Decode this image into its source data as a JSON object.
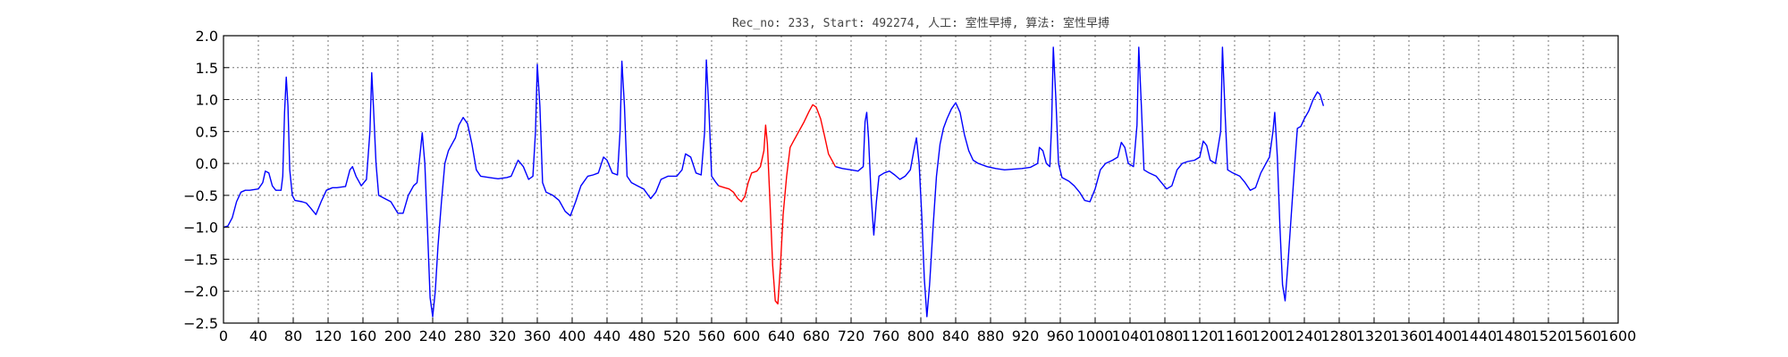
{
  "chart_data": {
    "type": "line",
    "title": "Rec_no: 233, Start: 492274, 人工: 室性早搏, 算法: 室性早搏",
    "xlabel": "",
    "ylabel": "",
    "xlim": [
      0,
      1600
    ],
    "ylim": [
      -2.5,
      2.0
    ],
    "grid": true,
    "x_ticks": [
      0,
      40,
      80,
      120,
      160,
      200,
      240,
      280,
      320,
      360,
      400,
      440,
      480,
      520,
      560,
      600,
      640,
      680,
      720,
      760,
      800,
      840,
      880,
      920,
      960,
      1000,
      1040,
      1080,
      1120,
      1160,
      1200,
      1240,
      1280,
      1320,
      1360,
      1400,
      1440,
      1480,
      1520,
      1560,
      1600
    ],
    "y_ticks": [
      2.0,
      1.5,
      1.0,
      0.5,
      0.0,
      -0.5,
      -1.0,
      -1.5,
      -2.0,
      -2.5
    ],
    "y_tick_labels": [
      "2.0",
      "1.5",
      "1.0",
      "0.5",
      "0.0",
      "−0.5",
      "−1.0",
      "−1.5",
      "−2.0",
      "−2.5"
    ],
    "series": [
      {
        "color": "#0000ff",
        "segment": "before",
        "points": [
          [
            0,
            -1.0
          ],
          [
            5,
            -0.98
          ],
          [
            10,
            -0.85
          ],
          [
            15,
            -0.6
          ],
          [
            20,
            -0.45
          ],
          [
            25,
            -0.42
          ],
          [
            30,
            -0.42
          ],
          [
            40,
            -0.4
          ],
          [
            45,
            -0.3
          ],
          [
            48,
            -0.12
          ],
          [
            52,
            -0.15
          ],
          [
            56,
            -0.35
          ],
          [
            60,
            -0.42
          ],
          [
            66,
            -0.42
          ],
          [
            68,
            -0.2
          ],
          [
            70,
            0.8
          ],
          [
            72,
            1.35
          ],
          [
            74,
            0.9
          ],
          [
            76,
            -0.1
          ],
          [
            79,
            -0.5
          ],
          [
            82,
            -0.58
          ],
          [
            90,
            -0.6
          ],
          [
            95,
            -0.62
          ],
          [
            100,
            -0.7
          ],
          [
            106,
            -0.8
          ],
          [
            112,
            -0.6
          ],
          [
            118,
            -0.42
          ],
          [
            125,
            -0.38
          ],
          [
            130,
            -0.38
          ],
          [
            140,
            -0.36
          ],
          [
            145,
            -0.1
          ],
          [
            148,
            -0.05
          ],
          [
            152,
            -0.2
          ],
          [
            158,
            -0.35
          ],
          [
            164,
            -0.25
          ],
          [
            168,
            0.5
          ],
          [
            170,
            1.42
          ],
          [
            172,
            0.9
          ],
          [
            175,
            0.0
          ],
          [
            178,
            -0.5
          ],
          [
            185,
            -0.55
          ],
          [
            192,
            -0.6
          ],
          [
            200,
            -0.78
          ],
          [
            206,
            -0.78
          ],
          [
            212,
            -0.5
          ],
          [
            218,
            -0.35
          ],
          [
            222,
            -0.3
          ],
          [
            226,
            0.2
          ],
          [
            228,
            0.48
          ],
          [
            231,
            0.0
          ],
          [
            234,
            -1.0
          ],
          [
            237,
            -2.1
          ],
          [
            240,
            -2.4
          ],
          [
            243,
            -2.0
          ],
          [
            246,
            -1.3
          ],
          [
            250,
            -0.6
          ],
          [
            254,
            0.0
          ],
          [
            258,
            0.2
          ],
          [
            262,
            0.3
          ],
          [
            266,
            0.4
          ],
          [
            270,
            0.6
          ],
          [
            275,
            0.72
          ],
          [
            280,
            0.62
          ],
          [
            285,
            0.3
          ],
          [
            290,
            -0.1
          ],
          [
            295,
            -0.2
          ],
          [
            305,
            -0.22
          ],
          [
            315,
            -0.24
          ],
          [
            325,
            -0.22
          ],
          [
            330,
            -0.2
          ],
          [
            338,
            0.05
          ],
          [
            344,
            -0.05
          ],
          [
            350,
            -0.25
          ],
          [
            355,
            -0.2
          ],
          [
            358,
            0.5
          ],
          [
            360,
            1.55
          ],
          [
            363,
            0.9
          ],
          [
            366,
            -0.3
          ],
          [
            370,
            -0.45
          ],
          [
            378,
            -0.5
          ],
          [
            385,
            -0.58
          ],
          [
            392,
            -0.75
          ],
          [
            398,
            -0.82
          ],
          [
            404,
            -0.6
          ],
          [
            410,
            -0.35
          ],
          [
            418,
            -0.2
          ],
          [
            424,
            -0.18
          ],
          [
            430,
            -0.15
          ],
          [
            436,
            0.1
          ],
          [
            440,
            0.05
          ],
          [
            446,
            -0.15
          ],
          [
            452,
            -0.18
          ],
          [
            455,
            0.5
          ],
          [
            457,
            1.6
          ],
          [
            460,
            0.9
          ],
          [
            463,
            -0.2
          ],
          [
            468,
            -0.3
          ],
          [
            475,
            -0.35
          ],
          [
            482,
            -0.4
          ],
          [
            490,
            -0.55
          ],
          [
            496,
            -0.45
          ],
          [
            502,
            -0.25
          ],
          [
            510,
            -0.2
          ],
          [
            520,
            -0.2
          ],
          [
            526,
            -0.1
          ],
          [
            530,
            0.15
          ],
          [
            536,
            0.1
          ],
          [
            542,
            -0.15
          ],
          [
            548,
            -0.18
          ],
          [
            552,
            0.5
          ],
          [
            554,
            1.62
          ],
          [
            557,
            0.8
          ],
          [
            560,
            -0.2
          ],
          [
            565,
            -0.3
          ],
          [
            568,
            -0.35
          ]
        ]
      },
      {
        "color": "#ff0000",
        "segment": "marked",
        "points": [
          [
            568,
            -0.35
          ],
          [
            575,
            -0.38
          ],
          [
            580,
            -0.4
          ],
          [
            585,
            -0.45
          ],
          [
            590,
            -0.55
          ],
          [
            594,
            -0.6
          ],
          [
            598,
            -0.52
          ],
          [
            602,
            -0.3
          ],
          [
            606,
            -0.15
          ],
          [
            612,
            -0.12
          ],
          [
            616,
            -0.05
          ],
          [
            620,
            0.2
          ],
          [
            622,
            0.6
          ],
          [
            624,
            0.3
          ],
          [
            627,
            -0.6
          ],
          [
            630,
            -1.6
          ],
          [
            633,
            -2.15
          ],
          [
            636,
            -2.2
          ],
          [
            639,
            -1.6
          ],
          [
            642,
            -0.8
          ],
          [
            646,
            -0.2
          ],
          [
            650,
            0.25
          ],
          [
            654,
            0.35
          ],
          [
            660,
            0.5
          ],
          [
            666,
            0.65
          ],
          [
            672,
            0.82
          ],
          [
            676,
            0.92
          ],
          [
            680,
            0.88
          ],
          [
            685,
            0.7
          ],
          [
            690,
            0.4
          ],
          [
            694,
            0.15
          ],
          [
            700,
            0.0
          ],
          [
            702,
            -0.05
          ]
        ]
      },
      {
        "color": "#0000ff",
        "segment": "after",
        "points": [
          [
            702,
            -0.05
          ],
          [
            710,
            -0.08
          ],
          [
            720,
            -0.1
          ],
          [
            728,
            -0.12
          ],
          [
            734,
            -0.05
          ],
          [
            736,
            0.65
          ],
          [
            738,
            0.8
          ],
          [
            740,
            0.4
          ],
          [
            743,
            -0.5
          ],
          [
            746,
            -1.12
          ],
          [
            749,
            -0.6
          ],
          [
            752,
            -0.2
          ],
          [
            758,
            -0.15
          ],
          [
            764,
            -0.12
          ],
          [
            770,
            -0.18
          ],
          [
            776,
            -0.25
          ],
          [
            782,
            -0.2
          ],
          [
            788,
            -0.1
          ],
          [
            792,
            0.2
          ],
          [
            795,
            0.4
          ],
          [
            798,
            0.0
          ],
          [
            801,
            -0.8
          ],
          [
            804,
            -1.8
          ],
          [
            807,
            -2.4
          ],
          [
            810,
            -1.9
          ],
          [
            814,
            -1.0
          ],
          [
            818,
            -0.2
          ],
          [
            822,
            0.3
          ],
          [
            826,
            0.55
          ],
          [
            830,
            0.7
          ],
          [
            835,
            0.85
          ],
          [
            840,
            0.95
          ],
          [
            845,
            0.8
          ],
          [
            850,
            0.45
          ],
          [
            855,
            0.2
          ],
          [
            860,
            0.05
          ],
          [
            866,
            0.0
          ],
          [
            876,
            -0.05
          ],
          [
            886,
            -0.08
          ],
          [
            896,
            -0.1
          ],
          [
            906,
            -0.09
          ],
          [
            916,
            -0.08
          ],
          [
            926,
            -0.06
          ],
          [
            934,
            0.0
          ],
          [
            936,
            0.25
          ],
          [
            940,
            0.2
          ],
          [
            944,
            0.0
          ],
          [
            948,
            -0.05
          ],
          [
            950,
            0.6
          ],
          [
            952,
            1.82
          ],
          [
            955,
            1.0
          ],
          [
            958,
            0.0
          ],
          [
            962,
            -0.22
          ],
          [
            970,
            -0.28
          ],
          [
            976,
            -0.35
          ],
          [
            982,
            -0.45
          ],
          [
            988,
            -0.58
          ],
          [
            994,
            -0.6
          ],
          [
            1000,
            -0.4
          ],
          [
            1006,
            -0.1
          ],
          [
            1012,
            0.0
          ],
          [
            1020,
            0.05
          ],
          [
            1026,
            0.1
          ],
          [
            1030,
            0.33
          ],
          [
            1034,
            0.25
          ],
          [
            1038,
            0.0
          ],
          [
            1044,
            -0.05
          ],
          [
            1048,
            0.6
          ],
          [
            1050,
            1.82
          ],
          [
            1053,
            0.9
          ],
          [
            1056,
            -0.1
          ],
          [
            1062,
            -0.15
          ],
          [
            1070,
            -0.2
          ],
          [
            1076,
            -0.3
          ],
          [
            1082,
            -0.4
          ],
          [
            1088,
            -0.35
          ],
          [
            1094,
            -0.1
          ],
          [
            1100,
            0.0
          ],
          [
            1106,
            0.03
          ],
          [
            1114,
            0.05
          ],
          [
            1120,
            0.1
          ],
          [
            1124,
            0.35
          ],
          [
            1128,
            0.28
          ],
          [
            1132,
            0.05
          ],
          [
            1138,
            0.0
          ],
          [
            1144,
            0.5
          ],
          [
            1146,
            1.82
          ],
          [
            1149,
            0.8
          ],
          [
            1152,
            -0.1
          ],
          [
            1158,
            -0.15
          ],
          [
            1166,
            -0.2
          ],
          [
            1172,
            -0.3
          ],
          [
            1178,
            -0.42
          ],
          [
            1184,
            -0.38
          ],
          [
            1190,
            -0.15
          ],
          [
            1196,
            0.0
          ],
          [
            1200,
            0.1
          ],
          [
            1204,
            0.5
          ],
          [
            1206,
            0.8
          ],
          [
            1209,
            0.1
          ],
          [
            1212,
            -1.0
          ],
          [
            1215,
            -1.9
          ],
          [
            1218,
            -2.15
          ],
          [
            1221,
            -1.6
          ],
          [
            1225,
            -0.8
          ],
          [
            1229,
            0.0
          ],
          [
            1232,
            0.55
          ],
          [
            1236,
            0.58
          ],
          [
            1240,
            0.7
          ],
          [
            1245,
            0.82
          ],
          [
            1250,
            1.0
          ],
          [
            1255,
            1.12
          ],
          [
            1258,
            1.08
          ],
          [
            1262,
            0.9
          ]
        ]
      }
    ]
  }
}
